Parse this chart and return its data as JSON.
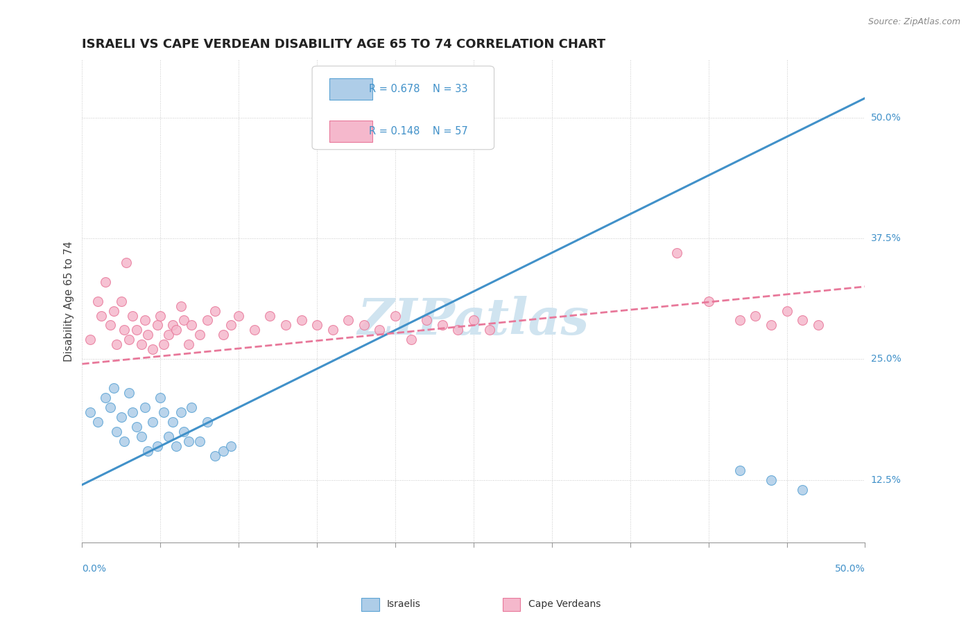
{
  "title": "ISRAELI VS CAPE VERDEAN DISABILITY AGE 65 TO 74 CORRELATION CHART",
  "source_text": "Source: ZipAtlas.com",
  "ylabel": "Disability Age 65 to 74",
  "ytick_labels": [
    "12.5%",
    "25.0%",
    "37.5%",
    "50.0%"
  ],
  "ytick_values": [
    0.125,
    0.25,
    0.375,
    0.5
  ],
  "xlim": [
    0.0,
    0.5
  ],
  "ylim": [
    0.06,
    0.56
  ],
  "legend_r1": "R = 0.678",
  "legend_n1": "N = 33",
  "legend_r2": "R = 0.148",
  "legend_n2": "N = 57",
  "israeli_color_fill": "#aecde8",
  "israeli_color_edge": "#5ba3d4",
  "cape_verdean_color_fill": "#f5b8cc",
  "cape_verdean_color_edge": "#e8789a",
  "line_israeli_color": "#4191c9",
  "line_cape_verdean_color": "#e8789a",
  "watermark_color": "#d0e4f0",
  "israeli_scatter_x": [
    0.005,
    0.01,
    0.015,
    0.018,
    0.02,
    0.022,
    0.025,
    0.027,
    0.03,
    0.032,
    0.035,
    0.038,
    0.04,
    0.042,
    0.045,
    0.048,
    0.05,
    0.052,
    0.055,
    0.058,
    0.06,
    0.063,
    0.065,
    0.068,
    0.07,
    0.075,
    0.08,
    0.085,
    0.09,
    0.095,
    0.42,
    0.44,
    0.46
  ],
  "israeli_scatter_y": [
    0.195,
    0.185,
    0.21,
    0.2,
    0.22,
    0.175,
    0.19,
    0.165,
    0.215,
    0.195,
    0.18,
    0.17,
    0.2,
    0.155,
    0.185,
    0.16,
    0.21,
    0.195,
    0.17,
    0.185,
    0.16,
    0.195,
    0.175,
    0.165,
    0.2,
    0.165,
    0.185,
    0.15,
    0.155,
    0.16,
    0.135,
    0.125,
    0.115
  ],
  "cape_verdean_scatter_x": [
    0.005,
    0.01,
    0.012,
    0.015,
    0.018,
    0.02,
    0.022,
    0.025,
    0.027,
    0.028,
    0.03,
    0.032,
    0.035,
    0.038,
    0.04,
    0.042,
    0.045,
    0.048,
    0.05,
    0.052,
    0.055,
    0.058,
    0.06,
    0.063,
    0.065,
    0.068,
    0.07,
    0.075,
    0.08,
    0.085,
    0.09,
    0.095,
    0.1,
    0.11,
    0.12,
    0.13,
    0.14,
    0.15,
    0.16,
    0.17,
    0.18,
    0.19,
    0.2,
    0.21,
    0.22,
    0.23,
    0.24,
    0.25,
    0.26,
    0.38,
    0.4,
    0.42,
    0.43,
    0.44,
    0.45,
    0.46,
    0.47
  ],
  "cape_verdean_scatter_y": [
    0.27,
    0.31,
    0.295,
    0.33,
    0.285,
    0.3,
    0.265,
    0.31,
    0.28,
    0.35,
    0.27,
    0.295,
    0.28,
    0.265,
    0.29,
    0.275,
    0.26,
    0.285,
    0.295,
    0.265,
    0.275,
    0.285,
    0.28,
    0.305,
    0.29,
    0.265,
    0.285,
    0.275,
    0.29,
    0.3,
    0.275,
    0.285,
    0.295,
    0.28,
    0.295,
    0.285,
    0.29,
    0.285,
    0.28,
    0.29,
    0.285,
    0.28,
    0.295,
    0.27,
    0.29,
    0.285,
    0.28,
    0.29,
    0.28,
    0.36,
    0.31,
    0.29,
    0.295,
    0.285,
    0.3,
    0.29,
    0.285
  ],
  "isr_line_x": [
    0.0,
    0.5
  ],
  "isr_line_y": [
    0.12,
    0.52
  ],
  "cv_line_x": [
    0.0,
    0.5
  ],
  "cv_line_y": [
    0.245,
    0.325
  ]
}
